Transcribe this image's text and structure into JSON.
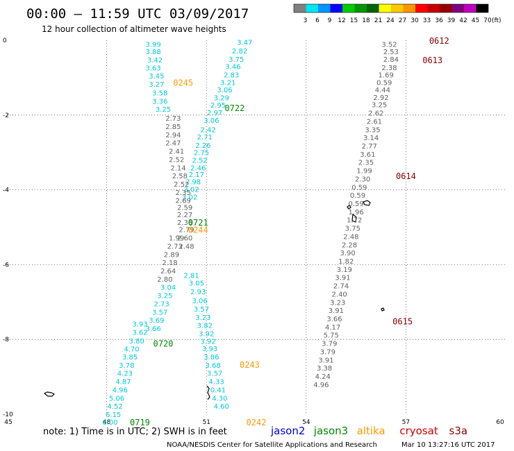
{
  "header": {
    "title": "00:00 — 11:59 UTC 03/09/2017",
    "subtitle": "12 hour collection of altimeter wave heights"
  },
  "colorbar": {
    "labels": [
      "3",
      "6",
      "9",
      "12",
      "15",
      "18",
      "21",
      "24",
      "27",
      "30",
      "33",
      "36",
      "39",
      "42",
      "45",
      "70"
    ],
    "unit": "(ft)",
    "colors": [
      "#808080",
      "#00e5ee",
      "#0096ff",
      "#0000ff",
      "#00cc00",
      "#009600",
      "#006400",
      "#ffff00",
      "#ffc800",
      "#ff9600",
      "#ff0000",
      "#c80000",
      "#960000",
      "#800080",
      "#c000c0",
      "#000000"
    ]
  },
  "footer": {
    "note": "note: 1) Time is in UTC; 2) SWH is in feet",
    "credit": "NOAA/NESDIS Center for Satellite Applications and Research",
    "timestamp": "Mar 10 13:27:16 UTC 2017"
  },
  "legend": [
    {
      "name": "jason2",
      "color": "#0000cc"
    },
    {
      "name": "jason3",
      "color": "#008800"
    },
    {
      "name": "altika",
      "color": "#ff9900"
    },
    {
      "name": "cryosat",
      "color": "#cc0000"
    },
    {
      "name": "s3a",
      "color": "#880000"
    }
  ],
  "chart_data": {
    "type": "scatter",
    "xlim": [
      45,
      60
    ],
    "ylim": [
      -10,
      0
    ],
    "x_ticks": [
      "45",
      "48",
      "51",
      "54",
      "57",
      "60"
    ],
    "y_ticks": [
      "0",
      "-2",
      "-4",
      "-6",
      "-8",
      "-10"
    ],
    "grid": true,
    "series": [
      {
        "name": "jason2",
        "color": "#00c8d8",
        "points": [
          {
            "x": 49.4,
            "y": -0.1,
            "v": "3.99"
          },
          {
            "x": 49.4,
            "y": -0.3,
            "v": "3.88"
          },
          {
            "x": 49.45,
            "y": -0.52,
            "v": "3.42"
          },
          {
            "x": 49.4,
            "y": -0.73,
            "v": "3.63"
          },
          {
            "x": 49.5,
            "y": -0.95,
            "v": "3.45"
          },
          {
            "x": 49.5,
            "y": -1.17,
            "v": "3.27"
          },
          {
            "x": 49.6,
            "y": -1.4,
            "v": "3.58"
          },
          {
            "x": 49.6,
            "y": -1.62,
            "v": "3.36"
          },
          {
            "x": 49.7,
            "y": -1.84,
            "v": "3.25"
          },
          {
            "x": 49.0,
            "y": -7.58,
            "v": "3.93"
          },
          {
            "x": 49.0,
            "y": -7.8,
            "v": "3.62"
          },
          {
            "x": 48.9,
            "y": -8.03,
            "v": "3.80"
          },
          {
            "x": 48.75,
            "y": -8.25,
            "v": "4.70"
          },
          {
            "x": 48.7,
            "y": -8.46,
            "v": "3.85"
          },
          {
            "x": 48.6,
            "y": -8.68,
            "v": "3.78"
          },
          {
            "x": 48.55,
            "y": -8.9,
            "v": "4.23"
          },
          {
            "x": 48.5,
            "y": -9.12,
            "v": "4.87"
          },
          {
            "x": 48.4,
            "y": -9.34,
            "v": "4.96"
          },
          {
            "x": 48.3,
            "y": -9.56,
            "v": "5.06"
          },
          {
            "x": 48.25,
            "y": -9.78,
            "v": "4.52"
          },
          {
            "x": 48.2,
            "y": -10.0,
            "v": "6.15"
          },
          {
            "x": 48.1,
            "y": -10.2,
            "v": "6.00"
          }
        ]
      },
      {
        "name": "jason3",
        "color": "#00c8d8",
        "points": [
          {
            "x": 49.85,
            "y": -6.6,
            "v": "3.04"
          },
          {
            "x": 49.75,
            "y": -6.82,
            "v": "3.25"
          },
          {
            "x": 49.65,
            "y": -7.04,
            "v": "2.73"
          },
          {
            "x": 49.6,
            "y": -7.26,
            "v": "3.57"
          },
          {
            "x": 49.5,
            "y": -7.48,
            "v": "3.69"
          },
          {
            "x": 49.4,
            "y": -7.7,
            "v": "3.66"
          }
        ]
      },
      {
        "name": "altika",
        "color": "#00c8d8",
        "points": [
          {
            "x": 52.15,
            "y": -0.05,
            "v": "3.47"
          },
          {
            "x": 52.0,
            "y": -0.28,
            "v": "2.82"
          },
          {
            "x": 51.9,
            "y": -0.5,
            "v": "3.75"
          },
          {
            "x": 51.8,
            "y": -0.7,
            "v": "3.46"
          },
          {
            "x": 51.75,
            "y": -0.92,
            "v": "2.83"
          },
          {
            "x": 51.65,
            "y": -1.12,
            "v": "3.21"
          },
          {
            "x": 51.55,
            "y": -1.32,
            "v": "3.06"
          },
          {
            "x": 51.45,
            "y": -1.53,
            "v": "3.29"
          },
          {
            "x": 51.35,
            "y": -1.73,
            "v": "2.95"
          },
          {
            "x": 51.25,
            "y": -1.93,
            "v": "2.97"
          },
          {
            "x": 51.15,
            "y": -2.13,
            "v": "3.06"
          },
          {
            "x": 51.05,
            "y": -2.38,
            "v": "2.42"
          },
          {
            "x": 50.95,
            "y": -2.58,
            "v": "2.71"
          },
          {
            "x": 50.9,
            "y": -2.8,
            "v": "2.26"
          },
          {
            "x": 50.85,
            "y": -3.0,
            "v": "2.75"
          },
          {
            "x": 50.8,
            "y": -3.2,
            "v": "2.52"
          },
          {
            "x": 50.75,
            "y": -3.4,
            "v": "2.46"
          },
          {
            "x": 50.7,
            "y": -3.58,
            "v": "2.17"
          },
          {
            "x": 50.6,
            "y": -3.78,
            "v": "2.98"
          },
          {
            "x": 50.55,
            "y": -3.98,
            "v": "3.02"
          },
          {
            "x": 50.5,
            "y": -4.18,
            "v": "3.02"
          },
          {
            "x": 50.55,
            "y": -6.28,
            "v": "2.81"
          },
          {
            "x": 50.7,
            "y": -6.48,
            "v": "3.05"
          },
          {
            "x": 50.75,
            "y": -6.72,
            "v": "2.93"
          },
          {
            "x": 50.8,
            "y": -6.96,
            "v": "3.06"
          },
          {
            "x": 50.85,
            "y": -7.18,
            "v": "3.57"
          },
          {
            "x": 50.9,
            "y": -7.4,
            "v": "3.23"
          },
          {
            "x": 50.95,
            "y": -7.62,
            "v": "3.82"
          },
          {
            "x": 51.0,
            "y": -7.84,
            "v": "3.92"
          },
          {
            "x": 51.05,
            "y": -8.04,
            "v": "3.92"
          },
          {
            "x": 51.1,
            "y": -8.24,
            "v": "3.93"
          },
          {
            "x": 51.15,
            "y": -8.46,
            "v": "3.86"
          },
          {
            "x": 51.2,
            "y": -8.68,
            "v": "3.68"
          },
          {
            "x": 51.25,
            "y": -8.9,
            "v": "3.57"
          },
          {
            "x": 51.3,
            "y": -9.12,
            "v": "4.33"
          },
          {
            "x": 51.35,
            "y": -9.34,
            "v": "0.41"
          },
          {
            "x": 51.4,
            "y": -9.56,
            "v": "4.30"
          },
          {
            "x": 51.45,
            "y": -9.78,
            "v": "4.60"
          }
        ]
      },
      {
        "name": "cryosat",
        "color": "#606060",
        "points": [
          {
            "x": 50.0,
            "y": -2.08,
            "v": "2.73"
          },
          {
            "x": 50.0,
            "y": -2.3,
            "v": "2.85"
          },
          {
            "x": 50.0,
            "y": -2.52,
            "v": "2.94"
          },
          {
            "x": 50.0,
            "y": -2.74,
            "v": "2.47"
          },
          {
            "x": 50.1,
            "y": -2.96,
            "v": "2.41"
          },
          {
            "x": 50.1,
            "y": -3.18,
            "v": "2.52"
          },
          {
            "x": 50.15,
            "y": -3.4,
            "v": "2.14"
          },
          {
            "x": 50.2,
            "y": -3.62,
            "v": "2.58"
          },
          {
            "x": 50.25,
            "y": -3.84,
            "v": "2.52"
          },
          {
            "x": 50.3,
            "y": -4.06,
            "v": "2.35"
          },
          {
            "x": 50.3,
            "y": -4.28,
            "v": "2.69"
          },
          {
            "x": 50.35,
            "y": -4.46,
            "v": "2.59"
          },
          {
            "x": 50.35,
            "y": -4.66,
            "v": "2.27"
          },
          {
            "x": 50.35,
            "y": -4.86,
            "v": "2.36"
          },
          {
            "x": 50.4,
            "y": -5.06,
            "v": "2.79"
          },
          {
            "x": 50.35,
            "y": -5.28,
            "v": "2.60"
          },
          {
            "x": 50.4,
            "y": -5.5,
            "v": "2.48"
          },
          {
            "x": 50.1,
            "y": -5.28,
            "v": "1.99"
          },
          {
            "x": 50.05,
            "y": -5.5,
            "v": "2.73"
          },
          {
            "x": 49.95,
            "y": -5.72,
            "v": "2.89"
          },
          {
            "x": 49.9,
            "y": -5.94,
            "v": "2.18"
          },
          {
            "x": 49.85,
            "y": -6.16,
            "v": "2.64"
          },
          {
            "x": 49.75,
            "y": -6.38,
            "v": "2.80"
          }
        ]
      },
      {
        "name": "s3a",
        "color": "#606060",
        "points": [
          {
            "x": 56.5,
            "y": -0.1,
            "v": "3.52"
          },
          {
            "x": 56.55,
            "y": -0.3,
            "v": "2.53"
          },
          {
            "x": 56.55,
            "y": -0.5,
            "v": "2.84"
          },
          {
            "x": 56.5,
            "y": -0.72,
            "v": "2.38"
          },
          {
            "x": 56.4,
            "y": -0.92,
            "v": "1.69"
          },
          {
            "x": 56.35,
            "y": -1.12,
            "v": "0.59"
          },
          {
            "x": 56.3,
            "y": -1.32,
            "v": "4.44"
          },
          {
            "x": 56.25,
            "y": -1.52,
            "v": "2.92"
          },
          {
            "x": 56.2,
            "y": -1.72,
            "v": "3.25"
          },
          {
            "x": 56.1,
            "y": -1.94,
            "v": "2.62"
          },
          {
            "x": 56.05,
            "y": -2.16,
            "v": "2.61"
          },
          {
            "x": 56.0,
            "y": -2.38,
            "v": "3.35"
          },
          {
            "x": 55.95,
            "y": -2.6,
            "v": "3.14"
          },
          {
            "x": 55.9,
            "y": -2.82,
            "v": "2.77"
          },
          {
            "x": 55.85,
            "y": -3.04,
            "v": "3.61"
          },
          {
            "x": 55.8,
            "y": -3.26,
            "v": "2.35"
          },
          {
            "x": 55.75,
            "y": -3.48,
            "v": "1.99"
          },
          {
            "x": 55.7,
            "y": -3.7,
            "v": "2.30"
          },
          {
            "x": 55.6,
            "y": -3.92,
            "v": "0.59"
          },
          {
            "x": 55.55,
            "y": -4.14,
            "v": "0.59"
          },
          {
            "x": 55.5,
            "y": -4.36,
            "v": "0.59"
          },
          {
            "x": 55.5,
            "y": -4.58,
            "v": "1.96"
          },
          {
            "x": 55.45,
            "y": -4.8,
            "v": "1.72"
          },
          {
            "x": 55.4,
            "y": -5.02,
            "v": "3.75"
          },
          {
            "x": 55.35,
            "y": -5.24,
            "v": "2.48"
          },
          {
            "x": 55.3,
            "y": -5.46,
            "v": "2.28"
          },
          {
            "x": 55.25,
            "y": -5.68,
            "v": "3.90"
          },
          {
            "x": 55.2,
            "y": -5.9,
            "v": "1.82"
          },
          {
            "x": 55.15,
            "y": -6.12,
            "v": "3.19"
          },
          {
            "x": 55.1,
            "y": -6.34,
            "v": "3.91"
          },
          {
            "x": 55.05,
            "y": -6.56,
            "v": "2.74"
          },
          {
            "x": 55.0,
            "y": -6.78,
            "v": "2.40"
          },
          {
            "x": 54.95,
            "y": -7.0,
            "v": "3.23"
          },
          {
            "x": 54.9,
            "y": -7.22,
            "v": "3.91"
          },
          {
            "x": 54.85,
            "y": -7.44,
            "v": "3.66"
          },
          {
            "x": 54.8,
            "y": -7.66,
            "v": "4.17"
          },
          {
            "x": 54.75,
            "y": -7.88,
            "v": "5.75"
          },
          {
            "x": 54.7,
            "y": -8.1,
            "v": "3.79"
          },
          {
            "x": 54.65,
            "y": -8.32,
            "v": "3.79"
          },
          {
            "x": 54.6,
            "y": -8.54,
            "v": "3.91"
          },
          {
            "x": 54.55,
            "y": -8.76,
            "v": "3.38"
          },
          {
            "x": 54.5,
            "y": -8.98,
            "v": "4.24"
          },
          {
            "x": 54.45,
            "y": -9.2,
            "v": "4.96"
          }
        ]
      }
    ],
    "annotations": [
      {
        "x": 58.0,
        "y": 0.0,
        "text": "0612",
        "color": "#880000"
      },
      {
        "x": 57.8,
        "y": -0.52,
        "text": "0613",
        "color": "#880000"
      },
      {
        "x": 57.0,
        "y": -3.62,
        "text": "0614",
        "color": "#880000"
      },
      {
        "x": 56.9,
        "y": -7.5,
        "text": "0615",
        "color": "#880000"
      },
      {
        "x": 50.3,
        "y": -1.12,
        "text": "0245",
        "color": "#ff9900"
      },
      {
        "x": 51.85,
        "y": -1.8,
        "text": "0722",
        "color": "#008800"
      },
      {
        "x": 50.75,
        "y": -4.86,
        "text": "0721",
        "color": "#008800"
      },
      {
        "x": 50.75,
        "y": -5.06,
        "text": "0244",
        "color": "#ff9900"
      },
      {
        "x": 49.7,
        "y": -8.1,
        "text": "0720",
        "color": "#008800"
      },
      {
        "x": 49.0,
        "y": -10.2,
        "text": "0719",
        "color": "#008800"
      },
      {
        "x": 52.3,
        "y": -8.66,
        "text": "0243",
        "color": "#ff9900"
      },
      {
        "x": 52.5,
        "y": -10.2,
        "text": "0242",
        "color": "#ff9900"
      }
    ]
  }
}
